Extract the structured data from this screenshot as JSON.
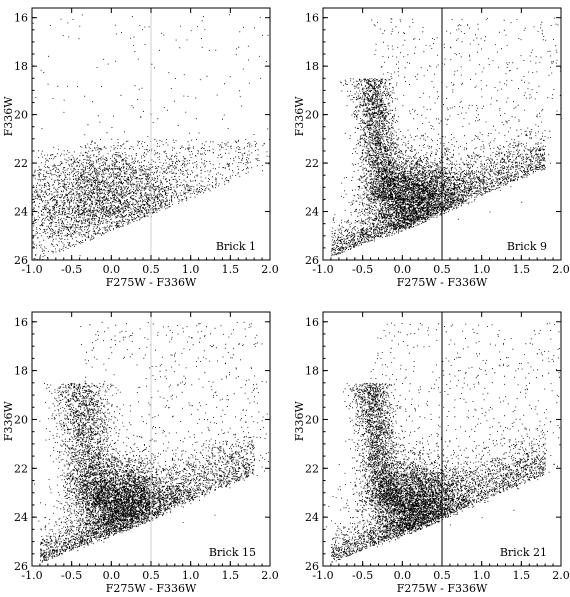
{
  "chart_data": [
    {
      "type": "scatter",
      "panel_label": "Brick 1",
      "xlabel": "F275W - F336W",
      "ylabel": "F336W",
      "xlim": [
        -1.0,
        2.0
      ],
      "ylim": [
        26,
        15.6
      ],
      "y_inverted": true,
      "xticks": [
        "-1.0",
        "-0.5",
        "0.0",
        "0.5",
        "1.0",
        "1.5",
        "2.0"
      ],
      "yticks": [
        "16",
        "18",
        "20",
        "22",
        "24",
        "26"
      ],
      "vertical_line": {
        "x": 0.5,
        "color": "#d0d0d0"
      },
      "points": [
        [
          -0.4,
          25.8
        ],
        [
          -0.1,
          24.9
        ],
        [
          0.2,
          24.5
        ],
        [
          0.5,
          24.2
        ],
        [
          -0.2,
          23.0
        ],
        [
          0.1,
          22.2
        ],
        [
          0.6,
          22.5
        ],
        [
          1.0,
          23.1
        ],
        [
          1.5,
          22.6
        ],
        [
          1.9,
          22.3
        ],
        [
          0.0,
          21.0
        ],
        [
          -0.3,
          20.4
        ],
        [
          0.7,
          19.8
        ],
        [
          1.2,
          18.4
        ],
        [
          1.6,
          17.2
        ],
        [
          1.8,
          16.4
        ]
      ],
      "point_color": "#000000"
    },
    {
      "type": "scatter",
      "panel_label": "Brick 9",
      "xlabel": "F275W - F336W",
      "ylabel": "F336W",
      "xlim": [
        -1.0,
        2.0
      ],
      "ylim": [
        26,
        15.6
      ],
      "y_inverted": true,
      "xticks": [
        "-1.0",
        "-0.5",
        "0.0",
        "0.5",
        "1.0",
        "1.5",
        "2.0"
      ],
      "yticks": [
        "16",
        "18",
        "20",
        "22",
        "24",
        "26"
      ],
      "vertical_line": {
        "x": 0.5,
        "color": "#000000"
      },
      "points": [
        [
          -0.6,
          25.9
        ],
        [
          -0.2,
          25.0
        ],
        [
          0.1,
          24.6
        ],
        [
          0.3,
          24.1
        ],
        [
          0.7,
          24.3
        ],
        [
          1.1,
          24.0
        ],
        [
          1.5,
          23.6
        ],
        [
          -0.2,
          22.5
        ],
        [
          -0.25,
          21.0
        ],
        [
          -0.3,
          19.8
        ],
        [
          -0.35,
          18.5
        ],
        [
          0.6,
          21.9
        ],
        [
          1.0,
          20.8
        ],
        [
          1.6,
          19.3
        ],
        [
          1.9,
          17.8
        ],
        [
          1.3,
          16.7
        ]
      ],
      "point_color": "#000000"
    },
    {
      "type": "scatter",
      "panel_label": "Brick 15",
      "xlabel": "F275W - F336W",
      "ylabel": "F336W",
      "xlim": [
        -1.0,
        2.0
      ],
      "ylim": [
        26,
        15.6
      ],
      "y_inverted": true,
      "xticks": [
        "-1.0",
        "-0.5",
        "0.0",
        "0.5",
        "1.0",
        "1.5",
        "2.0"
      ],
      "yticks": [
        "16",
        "18",
        "20",
        "22",
        "24",
        "26"
      ],
      "vertical_line": {
        "x": 0.5,
        "color": "#d0d0d0"
      },
      "points": [
        [
          -0.6,
          25.9
        ],
        [
          -0.1,
          25.0
        ],
        [
          0.2,
          24.4
        ],
        [
          0.5,
          24.0
        ],
        [
          0.9,
          24.2
        ],
        [
          1.3,
          23.9
        ],
        [
          -0.2,
          22.8
        ],
        [
          -0.2,
          21.4
        ],
        [
          -0.25,
          20.0
        ],
        [
          -0.3,
          18.6
        ],
        [
          0.5,
          22.0
        ],
        [
          0.9,
          20.9
        ],
        [
          1.4,
          19.6
        ],
        [
          1.8,
          18.2
        ],
        [
          1.6,
          16.9
        ],
        [
          0.8,
          17.6
        ]
      ],
      "point_color": "#000000"
    },
    {
      "type": "scatter",
      "panel_label": "Brick 21",
      "xlabel": "F275W - F336W",
      "ylabel": "F336W",
      "xlim": [
        -1.0,
        2.0
      ],
      "ylim": [
        26,
        15.6
      ],
      "y_inverted": true,
      "xticks": [
        "-1.0",
        "-0.5",
        "0.0",
        "0.5",
        "1.0",
        "1.5",
        "2.0"
      ],
      "yticks": [
        "16",
        "18",
        "20",
        "22",
        "24",
        "26"
      ],
      "vertical_line": {
        "x": 0.5,
        "color": "#000000"
      },
      "points": [
        [
          -0.7,
          25.9
        ],
        [
          -0.3,
          25.1
        ],
        [
          0.0,
          24.6
        ],
        [
          0.3,
          24.1
        ],
        [
          0.6,
          24.3
        ],
        [
          1.0,
          24.0
        ],
        [
          1.4,
          23.7
        ],
        [
          -0.3,
          22.6
        ],
        [
          -0.3,
          21.2
        ],
        [
          -0.35,
          19.9
        ],
        [
          -0.4,
          18.3
        ],
        [
          0.7,
          21.8
        ],
        [
          1.1,
          20.6
        ],
        [
          1.6,
          19.4
        ],
        [
          1.9,
          17.6
        ],
        [
          1.2,
          16.5
        ]
      ],
      "point_color": "#000000"
    }
  ]
}
